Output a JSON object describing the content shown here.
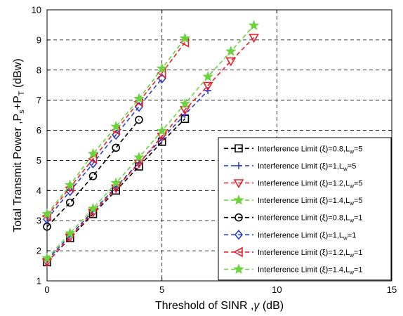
{
  "chart_data": {
    "type": "line",
    "xlabel_main": "Threshold of SINR ,",
    "xlabel_symbol": "γ",
    "xlabel_unit": " (dB)",
    "ylabel_main": "Total Transmit Power ,P",
    "ylabel_sub1": "s",
    "ylabel_mid": "+P",
    "ylabel_sub2": "T",
    "ylabel_unit": " (dBw)",
    "xlim": [
      0,
      15
    ],
    "ylim": [
      1,
      10
    ],
    "xticks": [
      "0",
      "5",
      "10",
      "15"
    ],
    "yticks": [
      "1",
      "2",
      "3",
      "4",
      "5",
      "6",
      "7",
      "8",
      "9",
      "10"
    ],
    "grid": true,
    "legend_position": "right-lower",
    "series": [
      {
        "name_prefix": "Interference Limit (ξ)=0.8,L",
        "name_sub": "w",
        "name_suffix": "=5",
        "color": "#000000",
        "marker": "square",
        "x": [
          0,
          1,
          2,
          3,
          4,
          5,
          6
        ],
        "y": [
          1.62,
          2.42,
          3.22,
          4.0,
          4.8,
          5.62,
          6.38
        ]
      },
      {
        "name_prefix": "Interference Limit (ξ)=1,L",
        "name_sub": "w",
        "name_suffix": "=5",
        "color": "#2b3fc9",
        "marker": "plus",
        "x": [
          0,
          1,
          2,
          3,
          4,
          5,
          6,
          7
        ],
        "y": [
          1.7,
          2.5,
          3.32,
          4.12,
          4.92,
          5.72,
          6.52,
          7.32
        ]
      },
      {
        "name_prefix": "Interference Limit (ξ)=1.2,L",
        "name_sub": "w",
        "name_suffix": "=5",
        "color": "#e8202a",
        "marker": "triangle-down",
        "x": [
          0,
          1,
          2,
          3,
          4,
          5,
          6,
          7,
          8,
          9
        ],
        "y": [
          1.62,
          2.45,
          3.27,
          4.08,
          4.9,
          5.8,
          6.68,
          7.48,
          8.3,
          9.08
        ]
      },
      {
        "name_prefix": "Interference Limit (ξ)=1.4,L",
        "name_sub": "w",
        "name_suffix": "=5",
        "color": "#6cd23e",
        "marker": "star",
        "x": [
          0,
          1,
          2,
          3,
          4,
          5,
          6,
          7,
          8,
          9
        ],
        "y": [
          1.75,
          2.58,
          3.4,
          4.25,
          5.1,
          5.98,
          6.88,
          7.78,
          8.62,
          9.48
        ]
      },
      {
        "name_prefix": "Interference Limit (ξ)=0.8,L",
        "name_sub": "w",
        "name_suffix": "=1",
        "color": "#000000",
        "marker": "circle",
        "x": [
          0,
          1,
          2,
          3,
          4
        ],
        "y": [
          2.8,
          3.6,
          4.48,
          5.42,
          6.35
        ]
      },
      {
        "name_prefix": "Interference Limit (ξ)=1,L",
        "name_sub": "w",
        "name_suffix": "=1",
        "color": "#2b3fc9",
        "marker": "diamond",
        "x": [
          0,
          1,
          2,
          3,
          4,
          5
        ],
        "y": [
          3.05,
          3.98,
          4.9,
          5.85,
          6.78,
          7.72
        ]
      },
      {
        "name_prefix": "Interference Limit (ξ)=1.2,L",
        "name_sub": "w",
        "name_suffix": "=1",
        "color": "#e8202a",
        "marker": "triangle-left",
        "x": [
          0,
          1,
          2,
          3,
          4,
          5,
          6
        ],
        "y": [
          3.15,
          4.1,
          5.05,
          6.0,
          6.95,
          7.9,
          8.92
        ]
      },
      {
        "name_prefix": "Interference Limit (ξ)=1.4,L",
        "name_sub": "w",
        "name_suffix": "=1",
        "color": "#6cd23e",
        "marker": "star",
        "x": [
          0,
          1,
          2,
          3,
          4,
          5,
          6
        ],
        "y": [
          3.22,
          4.18,
          5.22,
          6.12,
          7.05,
          8.05,
          9.05
        ]
      }
    ]
  }
}
